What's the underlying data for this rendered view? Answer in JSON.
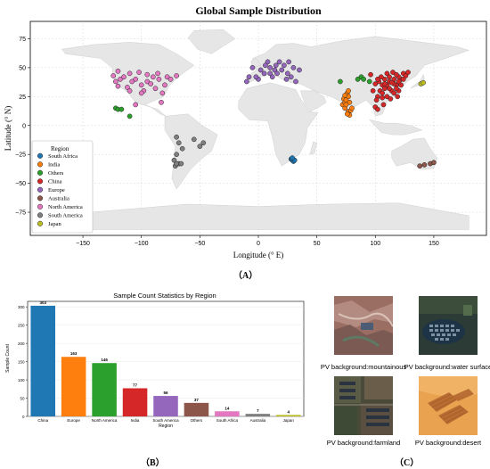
{
  "panels": {
    "a_label": "（A）",
    "b_label": "（B）",
    "c_label": "（C）"
  },
  "map": {
    "title": "Global Sample Distribution",
    "xlabel": "Longitude (° E)",
    "ylabel": "Latitude (° N)",
    "xticks": [
      -150,
      -100,
      -50,
      0,
      50,
      100,
      150
    ],
    "yticks": [
      75,
      50,
      25,
      0,
      -25,
      -50,
      -75
    ],
    "xlim": [
      -195,
      195
    ],
    "ylim": [
      -95,
      90
    ],
    "legend": {
      "title": "Region",
      "placement": "lower-left",
      "entries": [
        "South Africa",
        "India",
        "Others",
        "China",
        "Europe",
        "Australia",
        "North America",
        "South America",
        "Japan"
      ]
    }
  },
  "chart_data": [
    {
      "type": "scatter",
      "title": "Global Sample Distribution",
      "xlabel": "Longitude (° E)",
      "ylabel": "Latitude (° N)",
      "xlim": [
        -195,
        195
      ],
      "ylim": [
        -95,
        90
      ],
      "series": [
        {
          "name": "South Africa",
          "color": "#1f77b4",
          "points": [
            [
              28,
              -29
            ],
            [
              29,
              -30
            ],
            [
              30,
              -31
            ],
            [
              31,
              -30
            ],
            [
              29,
              -28
            ]
          ]
        },
        {
          "name": "India",
          "color": "#ff7f0e",
          "points": [
            [
              72,
              18
            ],
            [
              73,
              23
            ],
            [
              74,
              20
            ],
            [
              76,
              28
            ],
            [
              77,
              30
            ],
            [
              75,
              22
            ],
            [
              77,
              12
            ],
            [
              79,
              13
            ],
            [
              78,
              9
            ],
            [
              76,
              10
            ],
            [
              74,
              15
            ],
            [
              77,
              25
            ],
            [
              80,
              15
            ],
            [
              78,
              20
            ],
            [
              75,
              18
            ],
            [
              74,
              26
            ]
          ]
        },
        {
          "name": "Others",
          "color": "#2ca02c",
          "points": [
            [
              -122,
              15
            ],
            [
              -120,
              14
            ],
            [
              -110,
              8
            ],
            [
              85,
              40
            ],
            [
              88,
              42
            ],
            [
              90,
              40
            ],
            [
              70,
              38
            ],
            [
              95,
              38
            ],
            [
              -117,
              14
            ]
          ]
        },
        {
          "name": "China",
          "color": "#d62728",
          "points": [
            [
              102,
              25
            ],
            [
              104,
              30
            ],
            [
              106,
              35
            ],
            [
              108,
              40
            ],
            [
              110,
              45
            ],
            [
              112,
              38
            ],
            [
              114,
              30
            ],
            [
              116,
              40
            ],
            [
              118,
              35
            ],
            [
              120,
              30
            ],
            [
              122,
              40
            ],
            [
              110,
              25
            ],
            [
              113,
              23
            ],
            [
              106,
              28
            ],
            [
              100,
              36
            ],
            [
              103,
              38
            ],
            [
              105,
              42
            ],
            [
              120,
              42
            ],
            [
              124,
              45
            ],
            [
              126,
              43
            ],
            [
              115,
              46
            ],
            [
              108,
              32
            ],
            [
              112,
              32
            ],
            [
              116,
              28
            ],
            [
              119,
              25
            ],
            [
              101,
              22
            ],
            [
              98,
              30
            ],
            [
              116,
              36
            ],
            [
              122,
              35
            ],
            [
              118,
              44
            ],
            [
              110,
              35
            ],
            [
              106,
              24
            ],
            [
              96,
              44
            ],
            [
              100,
              16
            ],
            [
              102,
              14
            ],
            [
              107,
              18
            ],
            [
              124,
              40
            ],
            [
              112,
              42
            ],
            [
              128,
              46
            ],
            [
              102,
              40
            ],
            [
              118,
              32
            ],
            [
              114,
              37
            ],
            [
              120,
              38
            ],
            [
              108,
              36
            ]
          ]
        },
        {
          "name": "Europe",
          "color": "#9467bd",
          "points": [
            [
              -10,
              38
            ],
            [
              0,
              40
            ],
            [
              5,
              45
            ],
            [
              10,
              50
            ],
            [
              15,
              52
            ],
            [
              20,
              48
            ],
            [
              25,
              45
            ],
            [
              30,
              50
            ],
            [
              -5,
              50
            ],
            [
              8,
              55
            ],
            [
              12,
              42
            ],
            [
              18,
              55
            ],
            [
              22,
              52
            ],
            [
              2,
              48
            ],
            [
              14,
              48
            ],
            [
              -2,
              42
            ],
            [
              6,
              52
            ],
            [
              28,
              42
            ],
            [
              35,
              48
            ],
            [
              -8,
              42
            ],
            [
              16,
              45
            ],
            [
              24,
              40
            ],
            [
              32,
              38
            ],
            [
              10,
              45
            ],
            [
              26,
              55
            ]
          ]
        },
        {
          "name": "Australia",
          "color": "#8c564b",
          "points": [
            [
              142,
              -34
            ],
            [
              147,
              -33
            ],
            [
              138,
              -35
            ],
            [
              150,
              -32
            ]
          ]
        },
        {
          "name": "North America",
          "color": "#e377c2",
          "points": [
            [
              -120,
              47
            ],
            [
              -118,
              40
            ],
            [
              -115,
              42
            ],
            [
              -110,
              45
            ],
            [
              -122,
              38
            ],
            [
              -105,
              40
            ],
            [
              -100,
              35
            ],
            [
              -95,
              38
            ],
            [
              -90,
              42
            ],
            [
              -85,
              40
            ],
            [
              -80,
              35
            ],
            [
              -78,
              42
            ],
            [
              -75,
              40
            ],
            [
              -112,
              33
            ],
            [
              -98,
              30
            ],
            [
              -88,
              32
            ],
            [
              -82,
              28
            ],
            [
              -95,
              44
            ],
            [
              -108,
              38
            ],
            [
              -102,
              46
            ],
            [
              -120,
              34
            ],
            [
              -92,
              36
            ],
            [
              -86,
              45
            ],
            [
              -124,
              43
            ],
            [
              -110,
              30
            ],
            [
              -100,
              28
            ],
            [
              -70,
              43
            ],
            [
              -83,
              20
            ],
            [
              -105,
              18
            ]
          ]
        },
        {
          "name": "South America",
          "color": "#7f7f7f",
          "points": [
            [
              -70,
              -10
            ],
            [
              -68,
              -15
            ],
            [
              -65,
              -20
            ],
            [
              -70,
              -25
            ],
            [
              -72,
              -30
            ],
            [
              -68,
              -33
            ],
            [
              -71,
              -35
            ],
            [
              -66,
              -33
            ],
            [
              -55,
              -12
            ],
            [
              -50,
              -18
            ],
            [
              -47,
              -15
            ],
            [
              -70,
              -33
            ]
          ]
        },
        {
          "name": "Japan",
          "color": "#bcbd22",
          "points": [
            [
              139,
              36
            ],
            [
              141,
              37
            ]
          ]
        }
      ]
    },
    {
      "type": "bar",
      "title": "Sample Count Statistics by Region",
      "xlabel": "Region",
      "ylabel": "Sample Count",
      "categories": [
        "China",
        "Europe",
        "North America",
        "India",
        "South America",
        "Others",
        "South Africa",
        "Australia",
        "Japan"
      ],
      "values": [
        303,
        163,
        146,
        77,
        56,
        37,
        14,
        7,
        4
      ],
      "colors": [
        "#1f77b4",
        "#ff7f0e",
        "#2ca02c",
        "#d62728",
        "#9467bd",
        "#8c564b",
        "#e377c2",
        "#7f7f7f",
        "#bcbd22"
      ],
      "yticks": [
        0,
        50,
        100,
        150,
        200,
        250,
        300
      ],
      "ylim": [
        0,
        315
      ]
    }
  ],
  "pv_images": [
    {
      "caption": "PV background:mountainous",
      "scene": "mountainous"
    },
    {
      "caption": "PV background:water surface",
      "scene": "water"
    },
    {
      "caption": "PV background:farmland",
      "scene": "farmland"
    },
    {
      "caption": "PV background:desert",
      "scene": "desert"
    }
  ]
}
